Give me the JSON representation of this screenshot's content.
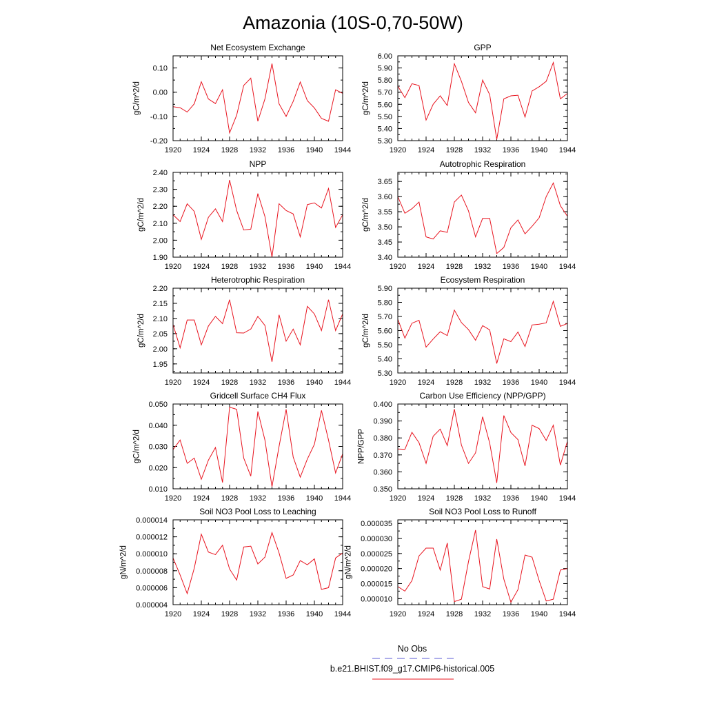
{
  "title": "Amazonia (10S-0,70-50W)",
  "series_color": "#e8131e",
  "obs_color": "#5b5bd6",
  "legend": {
    "obs_label": "No Obs",
    "model_label": "b.e21.BHIST.f09_g17.CMIP6-historical.005"
  },
  "chart_data": [
    {
      "type": "line",
      "title": "Net Ecosystem Exchange",
      "ylabel": "gC/m^2/d",
      "xlim": [
        1920,
        1944
      ],
      "xticks": [
        "1920",
        "1924",
        "1928",
        "1932",
        "1936",
        "1940",
        "1944"
      ],
      "ylim": [
        -0.2,
        0.15
      ],
      "yticks": [
        "-0.20",
        "-0.10",
        "0.00",
        "0.10"
      ],
      "x": [
        1920,
        1921,
        1922,
        1923,
        1924,
        1925,
        1926,
        1927,
        1928,
        1929,
        1930,
        1931,
        1932,
        1933,
        1934,
        1935,
        1936,
        1937,
        1938,
        1939,
        1940,
        1941,
        1942,
        1943,
        1944
      ],
      "series": [
        {
          "name": "b.e21.BHIST.f09_g17.CMIP6-historical.005",
          "values": [
            -0.06,
            -0.064,
            -0.082,
            -0.048,
            0.043,
            -0.028,
            -0.047,
            0.01,
            -0.168,
            -0.095,
            0.028,
            0.058,
            -0.12,
            -0.028,
            0.118,
            -0.048,
            -0.1,
            -0.038,
            0.042,
            -0.035,
            -0.065,
            -0.108,
            -0.12,
            0.01,
            -0.005
          ]
        }
      ]
    },
    {
      "type": "line",
      "title": "GPP",
      "ylabel": "gC/m^2/d",
      "xlim": [
        1920,
        1944
      ],
      "xticks": [
        "1920",
        "1924",
        "1928",
        "1932",
        "1936",
        "1940",
        "1944"
      ],
      "ylim": [
        5.3,
        6.0
      ],
      "yticks": [
        "5.30",
        "5.40",
        "5.50",
        "5.60",
        "5.70",
        "5.80",
        "5.90",
        "6.00"
      ],
      "x": [
        1920,
        1921,
        1922,
        1923,
        1924,
        1925,
        1926,
        1927,
        1928,
        1929,
        1930,
        1931,
        1932,
        1933,
        1934,
        1935,
        1936,
        1937,
        1938,
        1939,
        1940,
        1941,
        1942,
        1943,
        1944
      ],
      "series": [
        {
          "name": "b.e21.BHIST.f09_g17.CMIP6-historical.005",
          "values": [
            5.75,
            5.655,
            5.77,
            5.755,
            5.47,
            5.6,
            5.67,
            5.59,
            5.935,
            5.79,
            5.615,
            5.53,
            5.8,
            5.68,
            5.31,
            5.645,
            5.67,
            5.675,
            5.495,
            5.71,
            5.745,
            5.79,
            5.945,
            5.645,
            5.69
          ]
        }
      ]
    },
    {
      "type": "line",
      "title": "NPP",
      "ylabel": "gC/m^2/d",
      "xlim": [
        1920,
        1944
      ],
      "xticks": [
        "1920",
        "1924",
        "1928",
        "1932",
        "1936",
        "1940",
        "1944"
      ],
      "ylim": [
        1.9,
        2.4
      ],
      "yticks": [
        "1.90",
        "2.00",
        "2.10",
        "2.20",
        "2.30",
        "2.40"
      ],
      "x": [
        1920,
        1921,
        1922,
        1923,
        1924,
        1925,
        1926,
        1927,
        1928,
        1929,
        1930,
        1931,
        1932,
        1933,
        1934,
        1935,
        1936,
        1937,
        1938,
        1939,
        1940,
        1941,
        1942,
        1943,
        1944
      ],
      "series": [
        {
          "name": "b.e21.BHIST.f09_g17.CMIP6-historical.005",
          "values": [
            2.15,
            2.11,
            2.215,
            2.17,
            2.005,
            2.135,
            2.185,
            2.11,
            2.355,
            2.175,
            2.06,
            2.065,
            2.275,
            2.14,
            1.9,
            2.215,
            2.175,
            2.155,
            2.02,
            2.21,
            2.22,
            2.19,
            2.305,
            2.075,
            2.15
          ]
        }
      ]
    },
    {
      "type": "line",
      "title": "Autotrophic Respiration",
      "ylabel": "gC/m^2/d",
      "xlim": [
        1920,
        1944
      ],
      "xticks": [
        "1920",
        "1924",
        "1928",
        "1932",
        "1936",
        "1940",
        "1944"
      ],
      "ylim": [
        3.4,
        3.68
      ],
      "yticks": [
        "3.40",
        "3.45",
        "3.50",
        "3.55",
        "3.60",
        "3.65"
      ],
      "x": [
        1920,
        1921,
        1922,
        1923,
        1924,
        1925,
        1926,
        1927,
        1928,
        1929,
        1930,
        1931,
        1932,
        1933,
        1934,
        1935,
        1936,
        1937,
        1938,
        1939,
        1940,
        1941,
        1942,
        1943,
        1944
      ],
      "series": [
        {
          "name": "b.e21.BHIST.f09_g17.CMIP6-historical.005",
          "values": [
            3.6,
            3.545,
            3.56,
            3.582,
            3.467,
            3.46,
            3.487,
            3.482,
            3.582,
            3.605,
            3.553,
            3.467,
            3.528,
            3.528,
            3.412,
            3.432,
            3.497,
            3.523,
            3.477,
            3.502,
            3.53,
            3.6,
            3.645,
            3.57,
            3.535
          ]
        }
      ]
    },
    {
      "type": "line",
      "title": "Heterotrophic Respiration",
      "ylabel": "gC/m^2/d",
      "xlim": [
        1920,
        1944
      ],
      "xticks": [
        "1920",
        "1924",
        "1928",
        "1932",
        "1936",
        "1940",
        "1944"
      ],
      "ylim": [
        1.92,
        2.2
      ],
      "yticks": [
        "1.95",
        "2.00",
        "2.05",
        "2.10",
        "2.15",
        "2.20"
      ],
      "x": [
        1920,
        1921,
        1922,
        1923,
        1924,
        1925,
        1926,
        1927,
        1928,
        1929,
        1930,
        1931,
        1932,
        1933,
        1934,
        1935,
        1936,
        1937,
        1938,
        1939,
        1940,
        1941,
        1942,
        1943,
        1944
      ],
      "series": [
        {
          "name": "b.e21.BHIST.f09_g17.CMIP6-historical.005",
          "values": [
            2.08,
            2.003,
            2.095,
            2.095,
            2.013,
            2.075,
            2.107,
            2.083,
            2.162,
            2.053,
            2.052,
            2.065,
            2.107,
            2.077,
            1.957,
            2.112,
            2.025,
            2.065,
            2.013,
            2.14,
            2.115,
            2.06,
            2.162,
            2.06,
            2.115
          ]
        }
      ]
    },
    {
      "type": "line",
      "title": "Ecosystem Respiration",
      "ylabel": "gC/m^2/d",
      "xlim": [
        1920,
        1944
      ],
      "xticks": [
        "1920",
        "1924",
        "1928",
        "1932",
        "1936",
        "1940",
        "1944"
      ],
      "ylim": [
        5.3,
        5.9
      ],
      "yticks": [
        "5.30",
        "5.40",
        "5.50",
        "5.60",
        "5.70",
        "5.80",
        "5.90"
      ],
      "x": [
        1920,
        1921,
        1922,
        1923,
        1924,
        1925,
        1926,
        1927,
        1928,
        1929,
        1930,
        1931,
        1932,
        1933,
        1934,
        1935,
        1936,
        1937,
        1938,
        1939,
        1940,
        1941,
        1942,
        1943,
        1944
      ],
      "series": [
        {
          "name": "b.e21.BHIST.f09_g17.CMIP6-historical.005",
          "values": [
            5.68,
            5.547,
            5.652,
            5.673,
            5.483,
            5.54,
            5.592,
            5.565,
            5.745,
            5.657,
            5.607,
            5.532,
            5.635,
            5.605,
            5.367,
            5.542,
            5.522,
            5.59,
            5.487,
            5.64,
            5.645,
            5.655,
            5.807,
            5.63,
            5.65
          ]
        }
      ]
    },
    {
      "type": "line",
      "title": "Gridcell Surface CH4 Flux",
      "ylabel": "gC/m^2/d",
      "xlim": [
        1920,
        1944
      ],
      "xticks": [
        "1920",
        "1924",
        "1928",
        "1932",
        "1936",
        "1940",
        "1944"
      ],
      "ylim": [
        0.01,
        0.05
      ],
      "yticks": [
        "0.010",
        "0.020",
        "0.030",
        "0.040",
        "0.050"
      ],
      "x": [
        1920,
        1921,
        1922,
        1923,
        1924,
        1925,
        1926,
        1927,
        1928,
        1929,
        1930,
        1931,
        1932,
        1933,
        1934,
        1935,
        1936,
        1937,
        1938,
        1939,
        1940,
        1941,
        1942,
        1943,
        1944
      ],
      "series": [
        {
          "name": "b.e21.BHIST.f09_g17.CMIP6-historical.005",
          "values": [
            0.0285,
            0.033,
            0.022,
            0.0245,
            0.0145,
            0.0235,
            0.0295,
            0.013,
            0.0485,
            0.0475,
            0.0245,
            0.016,
            0.0465,
            0.033,
            0.011,
            0.03,
            0.0475,
            0.025,
            0.0155,
            0.024,
            0.031,
            0.047,
            0.033,
            0.0175,
            0.0265
          ]
        }
      ]
    },
    {
      "type": "line",
      "title": "Carbon Use Efficiency (NPP/GPP)",
      "ylabel": "NPP/GPP",
      "xlim": [
        1920,
        1944
      ],
      "xticks": [
        "1920",
        "1924",
        "1928",
        "1932",
        "1936",
        "1940",
        "1944"
      ],
      "ylim": [
        0.35,
        0.4
      ],
      "yticks": [
        "0.350",
        "0.360",
        "0.370",
        "0.380",
        "0.390",
        "0.400"
      ],
      "x": [
        1920,
        1921,
        1922,
        1923,
        1924,
        1925,
        1926,
        1927,
        1928,
        1929,
        1930,
        1931,
        1932,
        1933,
        1934,
        1935,
        1936,
        1937,
        1938,
        1939,
        1940,
        1941,
        1942,
        1943,
        1944
      ],
      "series": [
        {
          "name": "b.e21.BHIST.f09_g17.CMIP6-historical.005",
          "values": [
            0.3735,
            0.3733,
            0.3833,
            0.3772,
            0.365,
            0.381,
            0.3852,
            0.3755,
            0.397,
            0.3758,
            0.365,
            0.3712,
            0.3925,
            0.377,
            0.3535,
            0.3932,
            0.3832,
            0.379,
            0.3635,
            0.3875,
            0.3855,
            0.3785,
            0.3875,
            0.364,
            0.378
          ]
        }
      ]
    },
    {
      "type": "line",
      "title": "Soil NO3 Pool Loss to Leaching",
      "ylabel": "gN/m^2/d",
      "xlim": [
        1920,
        1944
      ],
      "xticks": [
        "1920",
        "1924",
        "1928",
        "1932",
        "1936",
        "1940",
        "1944"
      ],
      "ylim": [
        4e-06,
        1.4e-05
      ],
      "yticks": [
        "0.000004",
        "0.000006",
        "0.000008",
        "0.000010",
        "0.000012",
        "0.000014"
      ],
      "x": [
        1920,
        1921,
        1922,
        1923,
        1924,
        1925,
        1926,
        1927,
        1928,
        1929,
        1930,
        1931,
        1932,
        1933,
        1934,
        1935,
        1936,
        1937,
        1938,
        1939,
        1940,
        1941,
        1942,
        1943,
        1944
      ],
      "series": [
        {
          "name": "b.e21.BHIST.f09_g17.CMIP6-historical.005",
          "values": [
            9.5e-06,
            7.5e-06,
            5.3e-06,
            8.3e-06,
            1.23e-05,
            1.02e-05,
            9.9e-06,
            1.1e-05,
            8.2e-06,
            6.9e-06,
            1.08e-05,
            1.09e-05,
            8.8e-06,
            9.6e-06,
            1.25e-05,
            1.01e-05,
            7.1e-06,
            7.5e-06,
            9.2e-06,
            8.7e-06,
            9.4e-06,
            5.8e-06,
            6e-06,
            9.5e-06,
            1.01e-05
          ]
        }
      ]
    },
    {
      "type": "line",
      "title": "Soil NO3 Pool Loss to Runoff",
      "ylabel": "gN/m^2/d",
      "xlim": [
        1920,
        1944
      ],
      "xticks": [
        "1920",
        "1924",
        "1928",
        "1932",
        "1936",
        "1940",
        "1944"
      ],
      "ylim": [
        8e-06,
        3.62e-05
      ],
      "yticks": [
        "0.000010",
        "0.000015",
        "0.000020",
        "0.000025",
        "0.000030",
        "0.000035"
      ],
      "x": [
        1920,
        1921,
        1922,
        1923,
        1924,
        1925,
        1926,
        1927,
        1928,
        1929,
        1930,
        1931,
        1932,
        1933,
        1934,
        1935,
        1936,
        1937,
        1938,
        1939,
        1940,
        1941,
        1942,
        1943,
        1944
      ],
      "series": [
        {
          "name": "b.e21.BHIST.f09_g17.CMIP6-historical.005",
          "values": [
            1.4e-05,
            1.25e-05,
            1.6e-05,
            2.42e-05,
            2.68e-05,
            2.68e-05,
            1.95e-05,
            2.85e-05,
            9e-06,
            9.8e-06,
            2.23e-05,
            3.28e-05,
            1.4e-05,
            1.32e-05,
            2.98e-05,
            1.65e-05,
            8.8e-06,
            1.3e-05,
            2.45e-05,
            2.38e-05,
            1.6e-05,
            9.2e-06,
            9.8e-06,
            1.95e-05,
            2e-05
          ]
        }
      ]
    }
  ]
}
